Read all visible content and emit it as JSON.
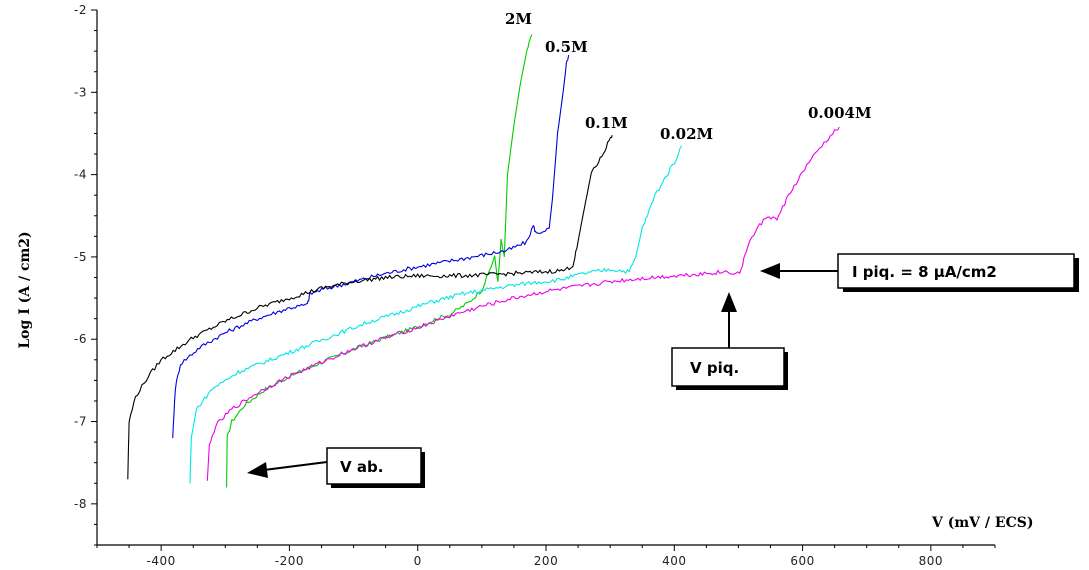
{
  "chart_data": {
    "type": "line",
    "xlabel": "V (mV / ECS)",
    "ylabel": "Log I (A / cm2)",
    "xlim": [
      -500,
      900
    ],
    "ylim": [
      -8.5,
      -2
    ],
    "x_ticks": [
      -400,
      -200,
      0,
      200,
      400,
      600,
      800
    ],
    "y_ticks": [
      -2,
      -3,
      -4,
      -5,
      -6,
      -7,
      -8
    ],
    "x_tick_labels": [
      "-400",
      "-200",
      "0",
      "200",
      "400",
      "600",
      "800"
    ],
    "y_tick_labels": [
      "-2",
      "-3",
      "-4",
      "-5",
      "-6",
      "-7",
      "-8"
    ],
    "grid": false,
    "series": [
      {
        "name": "2M",
        "color": "#00cc00",
        "points": [
          [
            -298,
            -7.8
          ],
          [
            -297,
            -7.2
          ],
          [
            -290,
            -7.0
          ],
          [
            -270,
            -6.8
          ],
          [
            -240,
            -6.62
          ],
          [
            -200,
            -6.45
          ],
          [
            -150,
            -6.28
          ],
          [
            -100,
            -6.12
          ],
          [
            -50,
            -5.98
          ],
          [
            0,
            -5.85
          ],
          [
            30,
            -5.75
          ],
          [
            50,
            -5.7
          ],
          [
            80,
            -5.55
          ],
          [
            100,
            -5.4
          ],
          [
            110,
            -5.2
          ],
          [
            120,
            -5.0
          ],
          [
            125,
            -5.3
          ],
          [
            130,
            -4.8
          ],
          [
            135,
            -5.0
          ],
          [
            140,
            -4.0
          ],
          [
            150,
            -3.4
          ],
          [
            160,
            -2.9
          ],
          [
            170,
            -2.5
          ],
          [
            178,
            -2.3
          ]
        ]
      },
      {
        "name": "0.5M",
        "color": "#0000dd",
        "points": [
          [
            -382,
            -7.2
          ],
          [
            -378,
            -6.6
          ],
          [
            -370,
            -6.3
          ],
          [
            -340,
            -6.1
          ],
          [
            -300,
            -5.92
          ],
          [
            -250,
            -5.75
          ],
          [
            -200,
            -5.62
          ],
          [
            -172,
            -5.58
          ],
          [
            -168,
            -5.45
          ],
          [
            -150,
            -5.4
          ],
          [
            -100,
            -5.3
          ],
          [
            -50,
            -5.2
          ],
          [
            0,
            -5.12
          ],
          [
            50,
            -5.05
          ],
          [
            100,
            -4.98
          ],
          [
            140,
            -4.92
          ],
          [
            170,
            -4.82
          ],
          [
            180,
            -4.62
          ],
          [
            185,
            -4.72
          ],
          [
            205,
            -4.65
          ],
          [
            210,
            -4.3
          ],
          [
            218,
            -3.5
          ],
          [
            225,
            -3.1
          ],
          [
            232,
            -2.65
          ],
          [
            236,
            -2.55
          ]
        ]
      },
      {
        "name": "0.1M",
        "color": "#000000",
        "points": [
          [
            -452,
            -7.7
          ],
          [
            -450,
            -7.0
          ],
          [
            -440,
            -6.7
          ],
          [
            -420,
            -6.45
          ],
          [
            -400,
            -6.25
          ],
          [
            -350,
            -5.98
          ],
          [
            -300,
            -5.78
          ],
          [
            -250,
            -5.62
          ],
          [
            -200,
            -5.5
          ],
          [
            -150,
            -5.38
          ],
          [
            -100,
            -5.3
          ],
          [
            -50,
            -5.25
          ],
          [
            0,
            -5.23
          ],
          [
            50,
            -5.23
          ],
          [
            100,
            -5.22
          ],
          [
            150,
            -5.2
          ],
          [
            200,
            -5.18
          ],
          [
            230,
            -5.16
          ],
          [
            242,
            -5.1
          ],
          [
            248,
            -4.9
          ],
          [
            255,
            -4.6
          ],
          [
            265,
            -4.2
          ],
          [
            272,
            -3.95
          ],
          [
            282,
            -3.85
          ],
          [
            292,
            -3.7
          ],
          [
            300,
            -3.55
          ],
          [
            303,
            -3.52
          ]
        ]
      },
      {
        "name": "0.02M",
        "color": "#00e5e5",
        "points": [
          [
            -355,
            -7.75
          ],
          [
            -353,
            -7.2
          ],
          [
            -345,
            -6.85
          ],
          [
            -320,
            -6.6
          ],
          [
            -280,
            -6.4
          ],
          [
            -230,
            -6.25
          ],
          [
            -180,
            -6.1
          ],
          [
            -130,
            -5.95
          ],
          [
            -80,
            -5.8
          ],
          [
            -30,
            -5.68
          ],
          [
            20,
            -5.55
          ],
          [
            70,
            -5.45
          ],
          [
            120,
            -5.38
          ],
          [
            170,
            -5.32
          ],
          [
            220,
            -5.28
          ],
          [
            260,
            -5.2
          ],
          [
            300,
            -5.15
          ],
          [
            330,
            -5.18
          ],
          [
            340,
            -5.0
          ],
          [
            350,
            -4.65
          ],
          [
            358,
            -4.5
          ],
          [
            370,
            -4.25
          ],
          [
            385,
            -4.05
          ],
          [
            400,
            -3.85
          ],
          [
            412,
            -3.65
          ]
        ]
      },
      {
        "name": "0.004M",
        "color": "#ee00ee",
        "points": [
          [
            -328,
            -7.72
          ],
          [
            -325,
            -7.3
          ],
          [
            -315,
            -7.05
          ],
          [
            -290,
            -6.85
          ],
          [
            -250,
            -6.65
          ],
          [
            -200,
            -6.45
          ],
          [
            -150,
            -6.28
          ],
          [
            -100,
            -6.12
          ],
          [
            -50,
            -5.98
          ],
          [
            0,
            -5.86
          ],
          [
            50,
            -5.72
          ],
          [
            100,
            -5.6
          ],
          [
            150,
            -5.5
          ],
          [
            200,
            -5.42
          ],
          [
            250,
            -5.36
          ],
          [
            300,
            -5.3
          ],
          [
            350,
            -5.26
          ],
          [
            400,
            -5.23
          ],
          [
            450,
            -5.2
          ],
          [
            480,
            -5.18
          ],
          [
            502,
            -5.2
          ],
          [
            508,
            -5.05
          ],
          [
            515,
            -4.85
          ],
          [
            530,
            -4.65
          ],
          [
            545,
            -4.5
          ],
          [
            560,
            -4.55
          ],
          [
            575,
            -4.3
          ],
          [
            590,
            -4.1
          ],
          [
            610,
            -3.85
          ],
          [
            630,
            -3.65
          ],
          [
            650,
            -3.48
          ],
          [
            657,
            -3.42
          ]
        ]
      }
    ],
    "annotations": [
      {
        "text": "I piq. = 8 µA/cm2"
      },
      {
        "text": "V piq."
      },
      {
        "text": "V ab."
      }
    ]
  }
}
